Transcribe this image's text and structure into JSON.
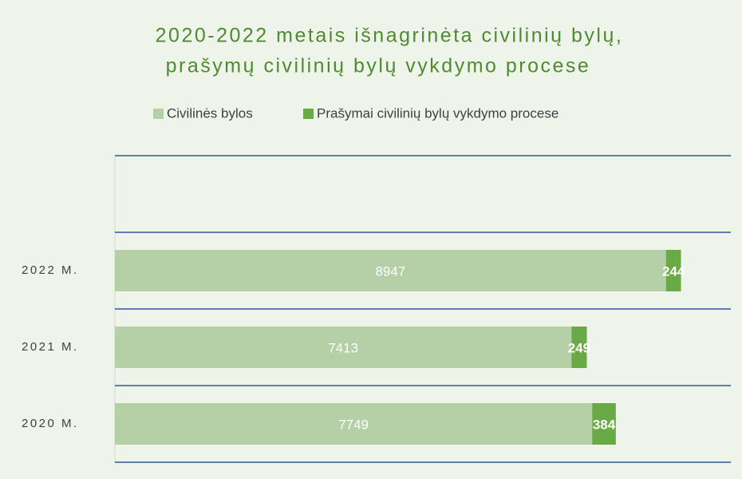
{
  "chart_data": {
    "type": "stacked_barh",
    "title": [
      "2020-2022 metais išnagrinėta civilinių bylų,",
      "prašymų civilinių bylų vykdymo procese"
    ],
    "categories": [
      "2020 M.",
      "2021 M.",
      "2022 M.",
      null
    ],
    "series": [
      {
        "name": "Civilinės bylos",
        "color": "#b5cfa6",
        "values": [
          7749,
          7413,
          8947,
          null
        ]
      },
      {
        "name": "Prašymai civilinių bylų vykdymo procese",
        "color": "#6aaa46",
        "values": [
          384,
          249,
          244,
          null
        ]
      }
    ],
    "xlim": [
      0,
      10000
    ],
    "legend": "top"
  }
}
